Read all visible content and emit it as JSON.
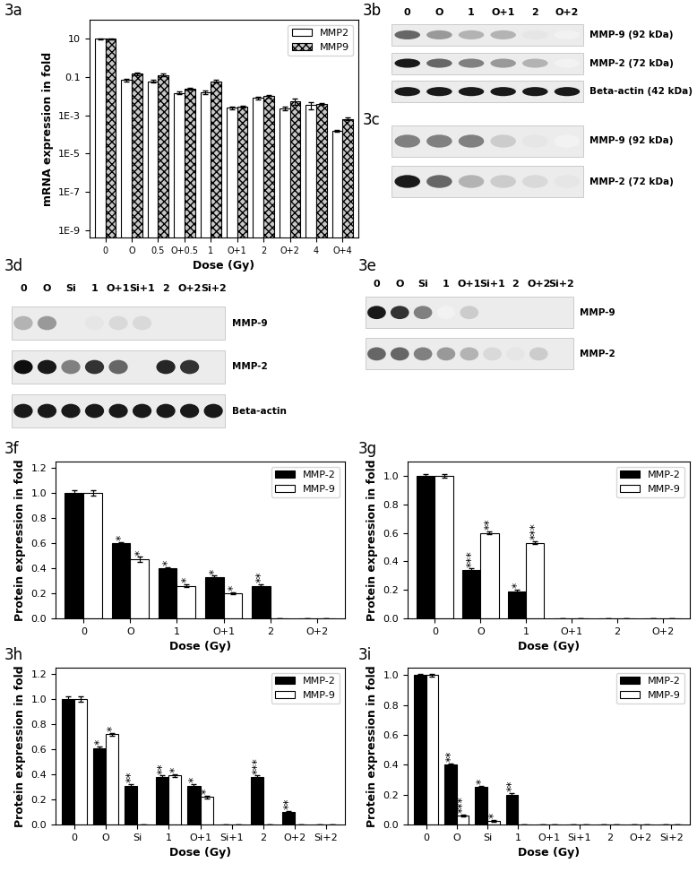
{
  "chart_data": [
    {
      "type": "bar",
      "title": "3a",
      "x_label": "Dose (Gy)",
      "y_label": "mRNA expression in fold",
      "categories": [
        "0",
        "O",
        "0.5",
        "O+0.5",
        "1",
        "O+1",
        "2",
        "O+2",
        "4",
        "O+4"
      ],
      "series": [
        {
          "name": "MMP2",
          "color": "#ffffff",
          "values": [
            10,
            0.07,
            0.06,
            0.015,
            0.016,
            0.0025,
            0.008,
            0.0023,
            0.0035,
            0.00015
          ],
          "errors": [
            0.5,
            0.01,
            0.01,
            0.002,
            0.003,
            0.0004,
            0.0015,
            0.0004,
            0.0015,
            2e-05
          ]
        },
        {
          "name": "MMP9",
          "color": "#c8c8c8",
          "values": [
            10,
            0.15,
            0.13,
            0.025,
            0.06,
            0.0028,
            0.01,
            0.0055,
            0.004,
            0.00065
          ],
          "errors": [
            0.5,
            0.02,
            0.02,
            0.003,
            0.01,
            0.0004,
            0.002,
            0.002,
            0.0005,
            0.0001
          ]
        }
      ],
      "log": "y",
      "ylim": [
        4e-10,
        100
      ],
      "yticks": [
        10,
        0.1,
        {
          "value": 0.001,
          "label": "1E-3"
        },
        {
          "value": 1e-05,
          "label": "1E-5"
        },
        {
          "value": 1e-07,
          "label": "1E-7"
        },
        {
          "value": 1e-09,
          "label": "1E-9"
        }
      ],
      "legend": "upper right",
      "grid": false
    },
    {
      "type": "bar",
      "title": "3f",
      "x_label": "Dose (Gy)",
      "y_label": "Protein expression in fold",
      "categories": [
        "0",
        "O",
        "1",
        "O+1",
        "2",
        "O+2"
      ],
      "series": [
        {
          "name": "MMP-2",
          "color": "#000000",
          "values": [
            1.0,
            0.6,
            0.4,
            0.33,
            0.26,
            0
          ],
          "errors": [
            0.02,
            0.01,
            0.01,
            0.01,
            0.01,
            0
          ],
          "significance": [
            null,
            "*",
            "*",
            "*",
            "**",
            null
          ]
        },
        {
          "name": "MMP-9",
          "color": "#ffffff",
          "values": [
            1.0,
            0.47,
            0.26,
            0.2,
            0,
            0
          ],
          "errors": [
            0.02,
            0.02,
            0.01,
            0.01,
            0,
            0
          ],
          "significance": [
            null,
            "*",
            "*",
            "*",
            null,
            null
          ]
        }
      ],
      "ylim": [
        0,
        1.25
      ],
      "yticks": [
        {
          "value": 0,
          "label": "0.0"
        },
        {
          "value": 0.2,
          "label": "0.2"
        },
        {
          "value": 0.4,
          "label": "0.4"
        },
        {
          "value": 0.6,
          "label": "0.6"
        },
        {
          "value": 0.8,
          "label": "0.8"
        },
        {
          "value": 1.0,
          "label": "1.0"
        },
        {
          "value": 1.2,
          "label": "1.2"
        }
      ],
      "legend": "upper right",
      "grid": false
    },
    {
      "type": "bar",
      "title": "3g",
      "x_label": "Dose (Gy)",
      "y_label": "Protein expression in fold",
      "categories": [
        "0",
        "O",
        "1",
        "O+1",
        "2",
        "O+2"
      ],
      "series": [
        {
          "name": "MMP-2",
          "color": "#000000",
          "values": [
            1.0,
            0.34,
            0.19,
            0,
            0,
            0
          ],
          "errors": [
            0.01,
            0.01,
            0.01,
            0,
            0,
            0
          ],
          "significance": [
            null,
            "***",
            "*",
            null,
            null,
            null
          ]
        },
        {
          "name": "MMP-9",
          "color": "#ffffff",
          "values": [
            1.0,
            0.6,
            0.53,
            0,
            0,
            0
          ],
          "errors": [
            0.01,
            0.01,
            0.01,
            0,
            0,
            0
          ],
          "significance": [
            null,
            "**",
            "***",
            null,
            null,
            null
          ]
        }
      ],
      "ylim": [
        0,
        1.1
      ],
      "yticks": [
        {
          "value": 0,
          "label": "0.0"
        },
        {
          "value": 0.2,
          "label": "0.2"
        },
        {
          "value": 0.4,
          "label": "0.4"
        },
        {
          "value": 0.6,
          "label": "0.6"
        },
        {
          "value": 0.8,
          "label": "0.8"
        },
        {
          "value": 1.0,
          "label": "1.0"
        }
      ],
      "legend": "upper right",
      "grid": false
    },
    {
      "type": "bar",
      "title": "3h",
      "x_label": "Dose (Gy)",
      "y_label": "Protein expression in fold",
      "categories": [
        "0",
        "O",
        "Si",
        "1",
        "O+1",
        "Si+1",
        "2",
        "O+2",
        "Si+2"
      ],
      "series": [
        {
          "name": "MMP-2",
          "color": "#000000",
          "values": [
            1.0,
            0.61,
            0.31,
            0.38,
            0.31,
            0,
            0.38,
            0.1,
            0
          ],
          "errors": [
            0.02,
            0.01,
            0.01,
            0.01,
            0.01,
            0,
            0.01,
            0.01,
            0
          ],
          "significance": [
            null,
            "*",
            "**",
            "**",
            "*",
            null,
            "***",
            "**",
            null
          ]
        },
        {
          "name": "MMP-9",
          "color": "#ffffff",
          "values": [
            1.0,
            0.72,
            0,
            0.39,
            0.22,
            0,
            0,
            0,
            0
          ],
          "errors": [
            0.02,
            0.01,
            0,
            0.01,
            0.01,
            0,
            0,
            0,
            0
          ],
          "significance": [
            null,
            "*",
            null,
            "*",
            "*",
            null,
            null,
            null,
            null
          ]
        }
      ],
      "ylim": [
        0,
        1.25
      ],
      "yticks": [
        {
          "value": 0,
          "label": "0.0"
        },
        {
          "value": 0.2,
          "label": "0.2"
        },
        {
          "value": 0.4,
          "label": "0.4"
        },
        {
          "value": 0.6,
          "label": "0.6"
        },
        {
          "value": 0.8,
          "label": "0.8"
        },
        {
          "value": 1.0,
          "label": "1.0"
        },
        {
          "value": 1.2,
          "label": "1.2"
        }
      ],
      "legend": "upper right",
      "grid": false
    },
    {
      "type": "bar",
      "title": "3i",
      "x_label": "Dose (Gy)",
      "y_label": "Protein expression in fold",
      "categories": [
        "0",
        "O",
        "Si",
        "1",
        "O+1",
        "Si+1",
        "2",
        "O+2",
        "Si+2"
      ],
      "series": [
        {
          "name": "MMP-2",
          "color": "#000000",
          "values": [
            1.0,
            0.4,
            0.25,
            0.2,
            0,
            0,
            0,
            0,
            0
          ],
          "errors": [
            0.01,
            0.01,
            0.01,
            0.01,
            0,
            0,
            0,
            0,
            0
          ],
          "significance": [
            null,
            "**",
            "*",
            "**",
            null,
            null,
            null,
            null,
            null
          ]
        },
        {
          "name": "MMP-9",
          "color": "#ffffff",
          "values": [
            1.0,
            0.06,
            0.025,
            0,
            0,
            0,
            0,
            0,
            0
          ],
          "errors": [
            0.01,
            0.005,
            0.005,
            0,
            0,
            0,
            0,
            0,
            0
          ],
          "significance": [
            null,
            "***",
            "*",
            null,
            null,
            null,
            null,
            null,
            null
          ]
        }
      ],
      "ylim": [
        0,
        1.05
      ],
      "yticks": [
        {
          "value": 0,
          "label": "0.0"
        },
        {
          "value": 0.2,
          "label": "0.2"
        },
        {
          "value": 0.4,
          "label": "0.4"
        },
        {
          "value": 0.6,
          "label": "0.6"
        },
        {
          "value": 0.8,
          "label": "0.8"
        },
        {
          "value": 1.0,
          "label": "1.0"
        }
      ],
      "legend": "upper right",
      "grid": false
    }
  ],
  "blots": [
    {
      "title": "3b",
      "lanes": [
        "0",
        "O",
        "1",
        "O+1",
        "2",
        "O+2"
      ],
      "rows": [
        {
          "name": "MMP-9 (92 kDa)",
          "bands": [
            0.6,
            0.4,
            0.3,
            0.3,
            0.1,
            0.05
          ]
        },
        {
          "name": "MMP-2 (72 kDa)",
          "bands": [
            0.9,
            0.6,
            0.5,
            0.4,
            0.3,
            0.05
          ]
        },
        {
          "name": "Beta-actin (42 kDa)",
          "bands": [
            0.9,
            0.9,
            0.9,
            0.9,
            0.9,
            0.9
          ]
        }
      ]
    },
    {
      "title": "3c",
      "rows": [
        {
          "name": "MMP-9 (92 kDa)",
          "bands": [
            0.5,
            0.5,
            0.5,
            0.2,
            0.1,
            0.05
          ]
        },
        {
          "name": "MMP-2 (72 kDa)",
          "bands": [
            0.9,
            0.6,
            0.3,
            0.2,
            0.15,
            0.1
          ]
        }
      ]
    },
    {
      "title": "3d",
      "lanes": [
        "0",
        "O",
        "Si",
        "1",
        "O+1",
        "Si+1",
        "2",
        "O+2",
        "Si+2"
      ],
      "rows": [
        {
          "name": "MMP-9",
          "bands": [
            0.3,
            0.4,
            0,
            0.1,
            0.15,
            0.15,
            0,
            0,
            0
          ]
        },
        {
          "name": "MMP-2",
          "bands": [
            0.95,
            0.9,
            0.5,
            0.8,
            0.6,
            0,
            0.85,
            0.8,
            0
          ]
        },
        {
          "name": "Beta-actin",
          "bands": [
            0.9,
            0.9,
            0.9,
            0.9,
            0.9,
            0.9,
            0.9,
            0.9,
            0.9
          ]
        }
      ]
    },
    {
      "title": "3e",
      "lanes": [
        "0",
        "O",
        "Si",
        "1",
        "O+1",
        "Si+1",
        "2",
        "O+2",
        "Si+2"
      ],
      "rows": [
        {
          "name": "MMP-9",
          "bands": [
            0.9,
            0.8,
            0.5,
            0.05,
            0.2,
            0,
            0,
            0,
            0
          ]
        },
        {
          "name": "MMP-2",
          "bands": [
            0.6,
            0.6,
            0.5,
            0.4,
            0.3,
            0.15,
            0.1,
            0.2,
            0
          ]
        }
      ]
    }
  ]
}
